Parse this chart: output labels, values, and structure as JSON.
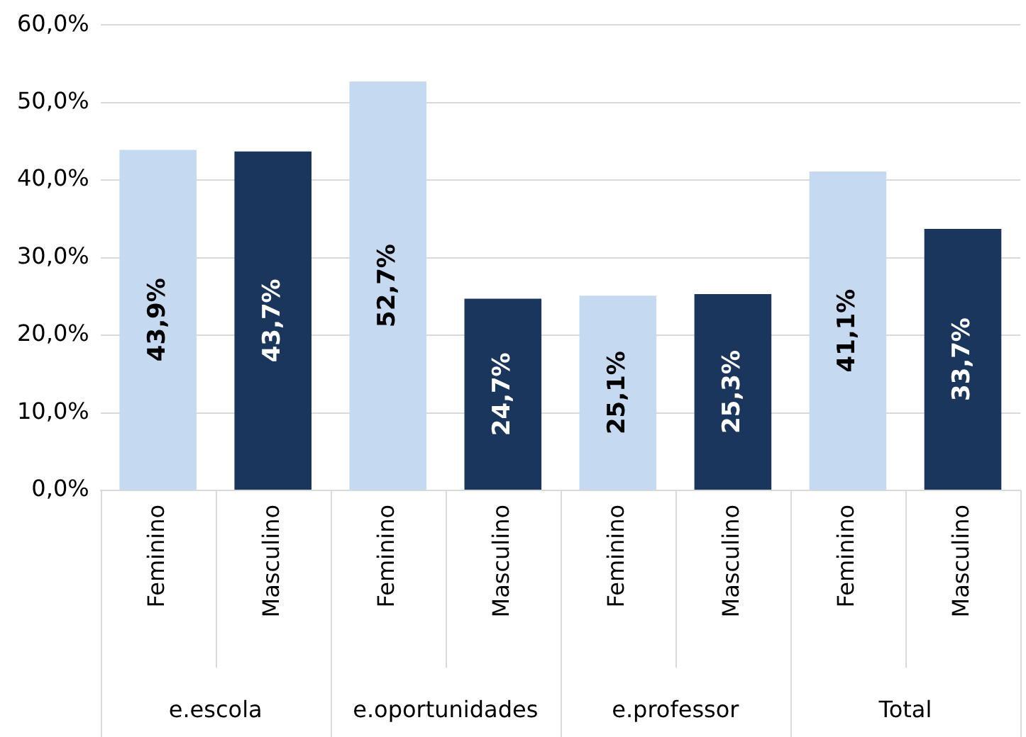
{
  "chart_data": {
    "type": "bar",
    "categories": [
      "Feminino",
      "Masculino",
      "Feminino",
      "Masculino",
      "Feminino",
      "Masculino",
      "Feminino",
      "Masculino"
    ],
    "values": [
      43.9,
      43.7,
      52.7,
      24.7,
      25.1,
      25.3,
      41.1,
      33.7
    ],
    "colors": [
      "#c5d9f1",
      "#1b365d",
      "#c5d9f1",
      "#1b365d",
      "#c5d9f1",
      "#1b365d",
      "#c5d9f1",
      "#1b365d"
    ],
    "value_labels": [
      "43,9%",
      "43,7%",
      "52,7%",
      "24,7%",
      "25,1%",
      "25,3%",
      "41,1%",
      "33,7%"
    ],
    "ylim": [
      0,
      60
    ],
    "yticks": [
      {
        "value": 0,
        "label": "0,0%"
      },
      {
        "value": 10,
        "label": "10,0%"
      },
      {
        "value": 20,
        "label": "20,0%"
      },
      {
        "value": 30,
        "label": "30,0%"
      },
      {
        "value": 40,
        "label": "40,0%"
      },
      {
        "value": 50,
        "label": "50,0%"
      },
      {
        "value": 60,
        "label": "60,0%"
      }
    ],
    "annotations": [
      "e.escola",
      "e.oportunidades",
      "e.professor",
      "Total"
    ],
    "grid": "y",
    "legend": false
  }
}
